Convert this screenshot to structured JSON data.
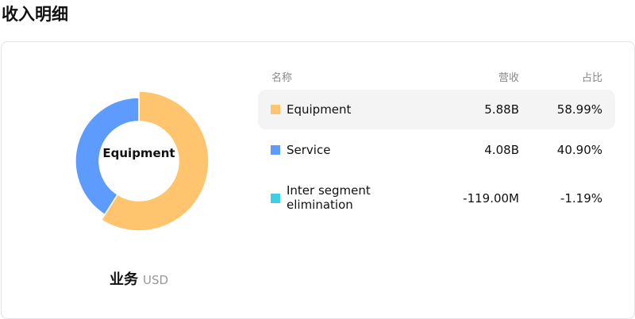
{
  "title": "收入明细",
  "segment": {
    "label": "业务",
    "currency": "USD"
  },
  "center_label": "Equipment",
  "table": {
    "headers": {
      "name": "名称",
      "revenue": "营收",
      "share": "占比"
    },
    "rows": [
      {
        "name": "Equipment",
        "revenue": "5.88B",
        "share": "58.99%",
        "color": "#FFC46E",
        "highlighted": true
      },
      {
        "name": "Service",
        "revenue": "4.08B",
        "share": "40.90%",
        "color": "#5E9BFF",
        "highlighted": false
      },
      {
        "name": "Inter segment elimination",
        "revenue": "-119.00M",
        "share": "-1.19%",
        "color": "#3ECFE6",
        "highlighted": false
      }
    ]
  },
  "chart_data": {
    "type": "pie",
    "categories": [
      "Equipment",
      "Service"
    ],
    "values": [
      5.88,
      4.08
    ],
    "colors": [
      "#FFC46E",
      "#5E9BFF"
    ],
    "donut": true,
    "highlighted": "Equipment"
  }
}
